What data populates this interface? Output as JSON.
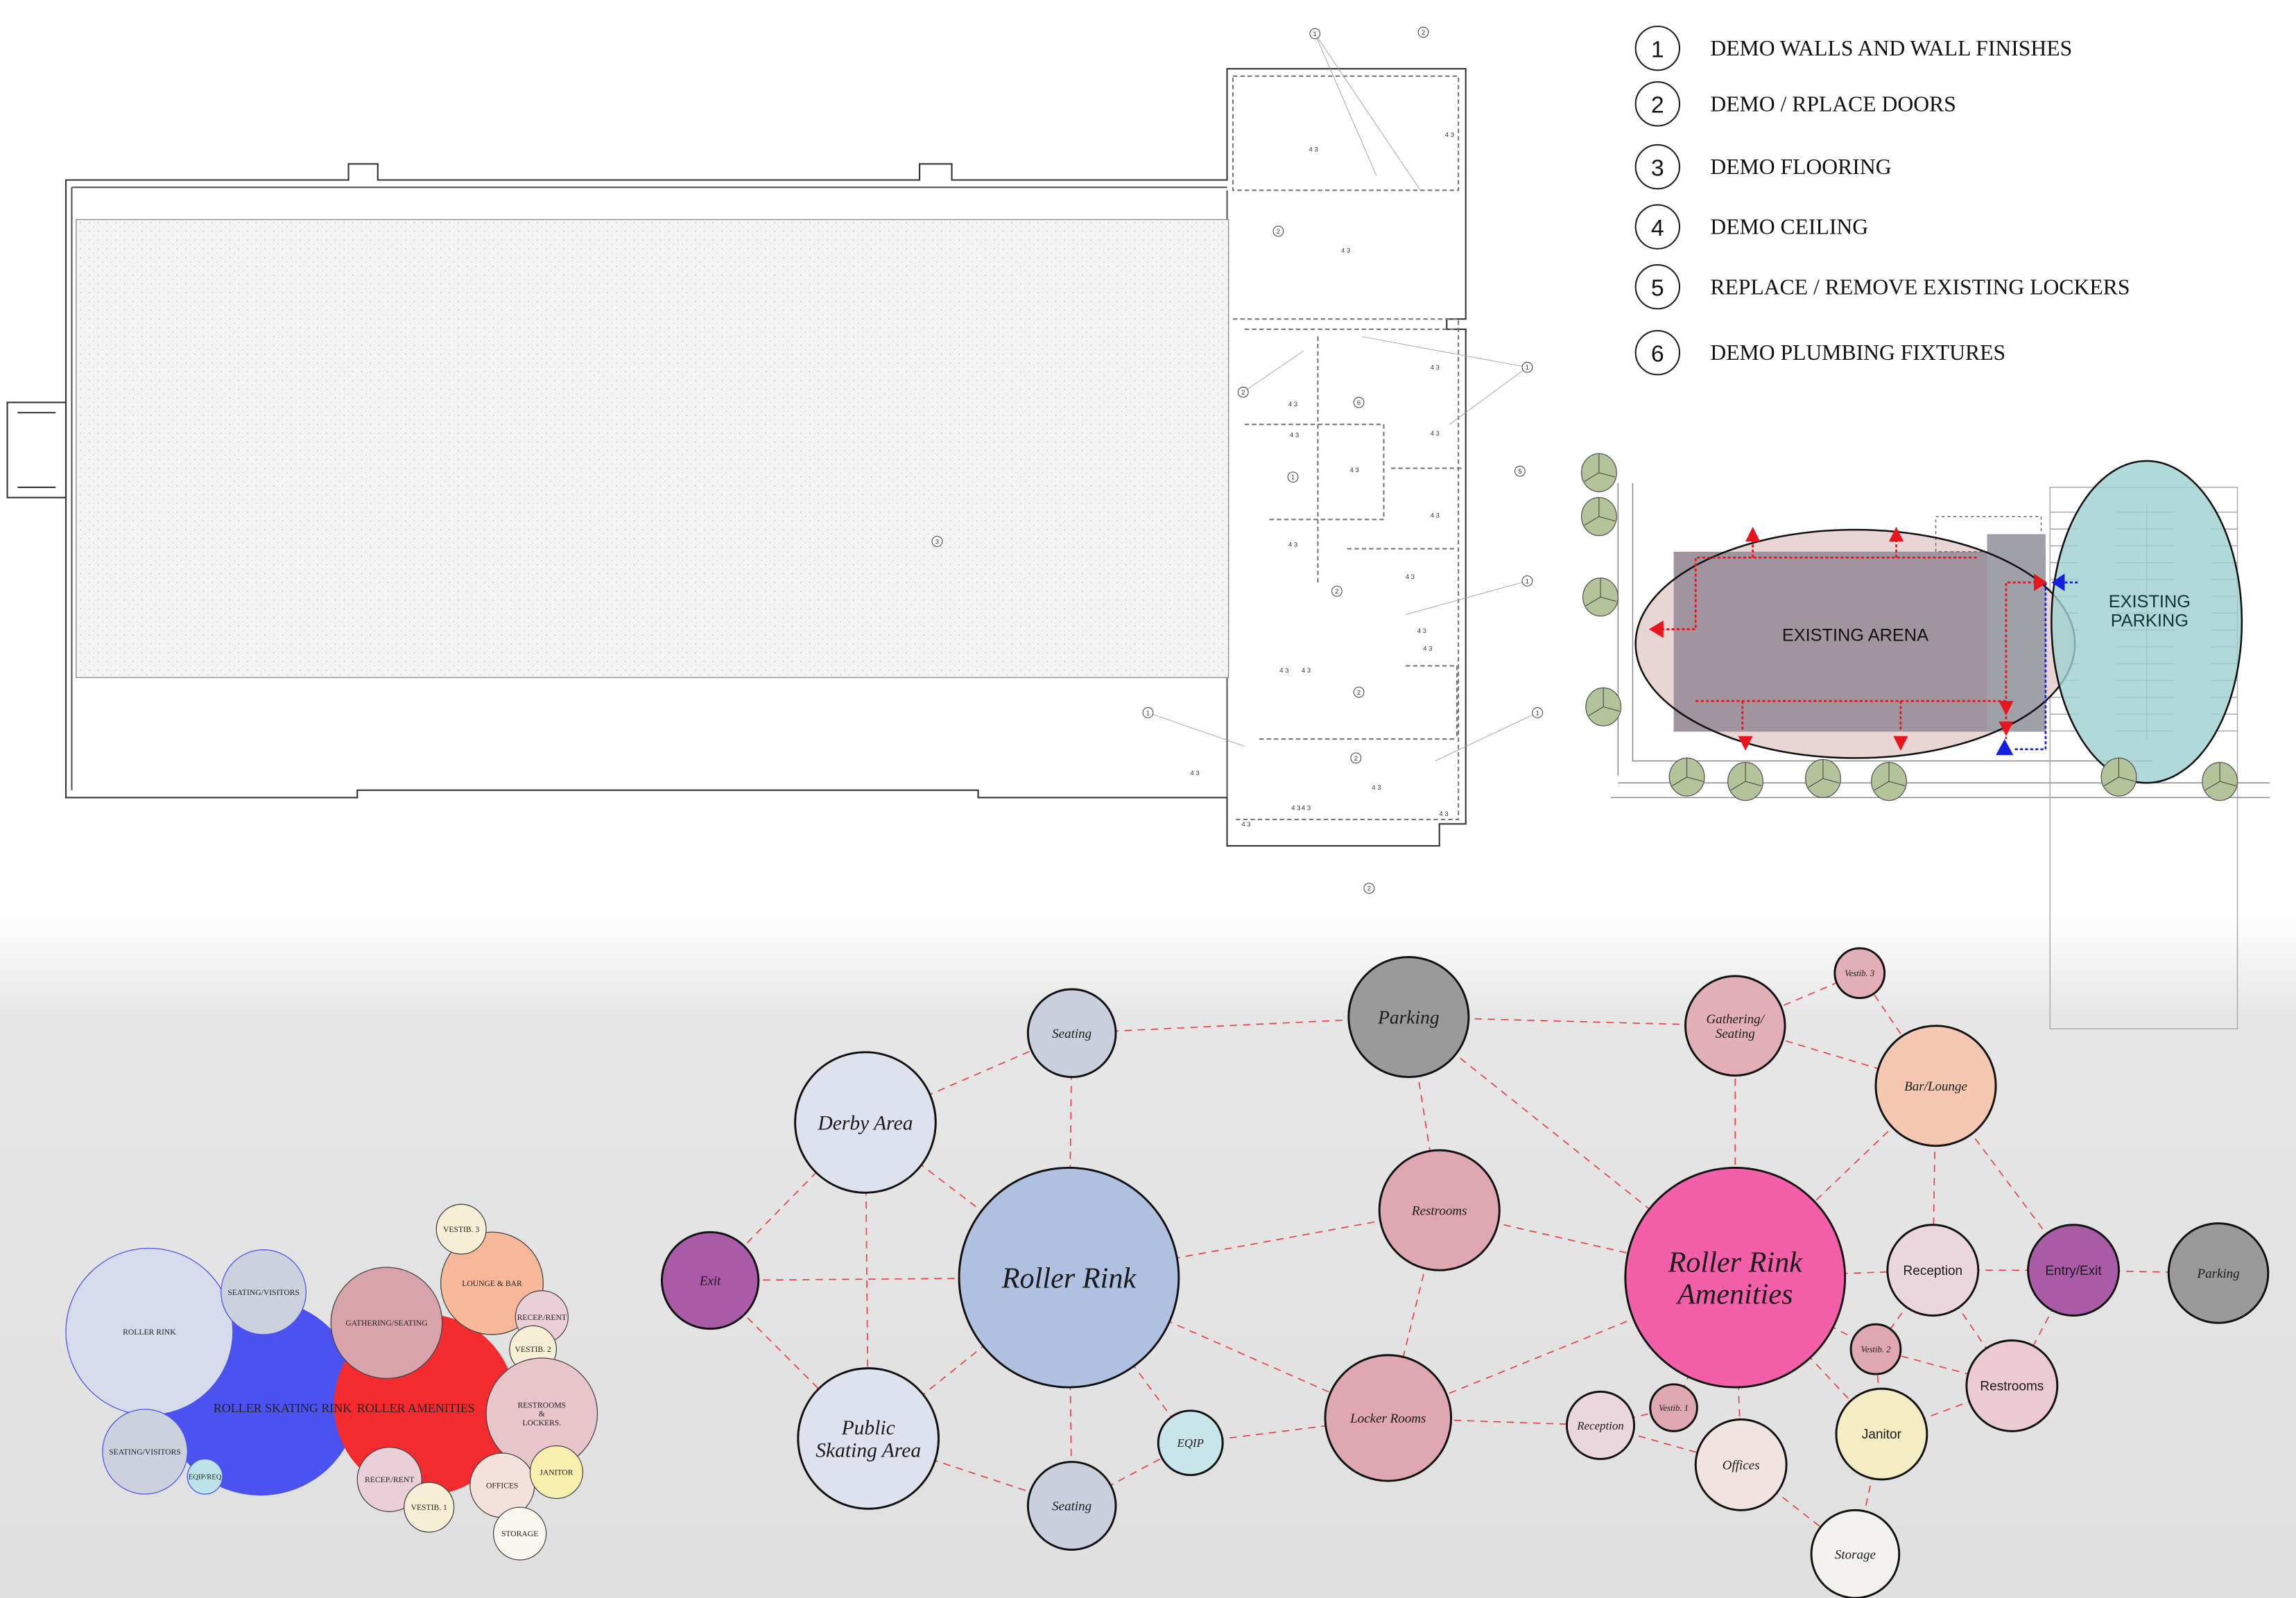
{
  "legend": {
    "items": [
      {
        "num": "1",
        "label": "DEMO WALLS AND WALL  FINISHES"
      },
      {
        "num": "2",
        "label": "DEMO / RPLACE DOORS"
      },
      {
        "num": "3",
        "label": "DEMO FLOORING"
      },
      {
        "num": "4",
        "label": "DEMO CEILING"
      },
      {
        "num": "5",
        "label": "REPLACE / REMOVE EXISTING LOCKERS"
      },
      {
        "num": "6",
        "label": "DEMO PLUMBING FIXTURES"
      }
    ]
  },
  "floor_plan": {
    "tags": [
      "1",
      "2",
      "4 3",
      "4 3",
      "2",
      "4 3",
      "4 3",
      "1",
      "2",
      "4 3",
      "4 3",
      "6",
      "4 3",
      "4 3",
      "5",
      "1",
      "3",
      "4 3",
      "4 3",
      "4 3",
      "2",
      "4 3",
      "1",
      "4 3",
      "4 3",
      "4 3",
      "1",
      "4 3",
      "2",
      "4 3",
      "2",
      "4 3",
      "1",
      "4 3",
      "4 3",
      "4 3",
      "2"
    ]
  },
  "site_plan": {
    "arena_label": "EXISTING ARENA",
    "parking_label_line1": "EXISTING",
    "parking_label_line2": "PARKING",
    "colors": {
      "egress": "#e8141e",
      "entry": "#1420e0",
      "parking_zone": "#9fd0cf",
      "arena": "#a0959e"
    }
  },
  "bubble_cluster": {
    "groups": [
      {
        "label": "ROLLER SKATING RINK",
        "color": "#4b52f0"
      },
      {
        "label": "ROLLER AMENITIES",
        "color": "#f32b2e"
      }
    ],
    "bubbles": [
      {
        "label": "ROLLER RINK",
        "color": "#d6dcec"
      },
      {
        "label": "SEATING/VISITORS",
        "color": "#cbd2de"
      },
      {
        "label": "SEATING/VISITORS",
        "color": "#cbd2de"
      },
      {
        "label": "EQIP/REQ",
        "color": "#bde3ea"
      },
      {
        "label": "GATHERING/SEATING",
        "color": "#d8a3ab"
      },
      {
        "label": "LOUNGE & BAR",
        "color": "#f6b898"
      },
      {
        "label": "VESTIB. 3",
        "color": "#f7eed6"
      },
      {
        "label": "RECEP./RENT",
        "color": "#eacfd9"
      },
      {
        "label": "VESTIB. 2",
        "color": "#f7eed6"
      },
      {
        "label": "RESTROOMS & LOCKERS.",
        "color": "#e8c4cb"
      },
      {
        "label": "RECEP./RENT",
        "color": "#eacfd9"
      },
      {
        "label": "VESTIB. 1",
        "color": "#f7eed6"
      },
      {
        "label": "OFFICES",
        "color": "#f5e1dc"
      },
      {
        "label": "JANITOR",
        "color": "#f8eeae"
      },
      {
        "label": "STORAGE",
        "color": "#f8f6ee"
      }
    ]
  },
  "adjacency_diagram": {
    "edge_color": "#e8414a",
    "nodes": [
      {
        "label": "Exit",
        "color": "#a95ba8"
      },
      {
        "label": "Derby Area",
        "color": "#dde2ee"
      },
      {
        "label": "Seating",
        "color": "#c9cfdc"
      },
      {
        "label": "Roller Rink",
        "color": "#afc0e0"
      },
      {
        "label": "Public Skating Area",
        "color": "#dde2ee"
      },
      {
        "label": "Seating",
        "color": "#c9cfdc"
      },
      {
        "label": "EQIP",
        "color": "#c8e6ea"
      },
      {
        "label": "Parking",
        "color": "#9a9a9a"
      },
      {
        "label": "Restrooms",
        "color": "#dea7b2"
      },
      {
        "label": "Locker Rooms",
        "color": "#dea7b2"
      },
      {
        "label": "Gathering/ Seating",
        "color": "#e2aeb8"
      },
      {
        "label": "Vestib. 3",
        "color": "#e2aeb8"
      },
      {
        "label": "Bar/Lounge",
        "color": "#f6c8b2"
      },
      {
        "label": "Roller Rink Amenities",
        "color": "#f45faa"
      },
      {
        "label": "Reception",
        "color": "#ecd6de"
      },
      {
        "label": "Entry/Exit",
        "color": "#a95ba8"
      },
      {
        "label": "Parking",
        "color": "#9a9a9a"
      },
      {
        "label": "Vestib. 2",
        "color": "#dea7b2"
      },
      {
        "label": "Restrooms",
        "color": "#ebcbd1"
      },
      {
        "label": "Janitor",
        "color": "#f4ecc2"
      },
      {
        "label": "Vestib. 1",
        "color": "#dea7b2"
      },
      {
        "label": "Reception",
        "color": "#ecd6de"
      },
      {
        "label": "Offices",
        "color": "#f1e3e0"
      },
      {
        "label": "Storage",
        "color": "#f4f2ee"
      }
    ]
  }
}
